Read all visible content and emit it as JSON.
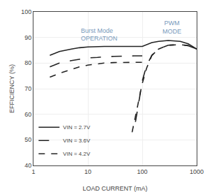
{
  "chart_data": {
    "type": "line",
    "xlabel": "LOAD CURRENT (mA)",
    "ylabel": "EFFICIENCY (%)",
    "log": "x",
    "xlim": [
      1,
      1000
    ],
    "ylim": [
      40,
      100
    ],
    "xticks": [
      1,
      10,
      100,
      1000
    ],
    "yticks": [
      40,
      50,
      60,
      70,
      80,
      90,
      100
    ],
    "grid": true,
    "legend": "lower left",
    "series": [
      {
        "name": "VIN = 2.7V",
        "color": "#222222",
        "line_style": "solid",
        "x": [
          2,
          3,
          5,
          7,
          10,
          15,
          20,
          30,
          50,
          70,
          100,
          150,
          200,
          300,
          500,
          700,
          1000
        ],
        "values": [
          83.0,
          84.5,
          85.5,
          86.0,
          86.3,
          86.5,
          86.5,
          86.5,
          86.5,
          86.5,
          86.5,
          88.0,
          88.5,
          88.8,
          88.5,
          87.5,
          85.5
        ]
      },
      {
        "name": "VIN = 3.6V",
        "color": "#222222",
        "line_style": "longdash",
        "x": [
          2,
          3,
          5,
          7,
          10,
          15,
          20,
          30,
          50,
          70,
          100,
          null,
          75,
          80,
          90,
          100,
          120,
          150,
          200,
          300,
          500,
          700,
          1000
        ],
        "values": [
          78.5,
          80.0,
          81.0,
          81.5,
          82.0,
          82.2,
          82.5,
          82.6,
          82.8,
          82.8,
          82.8,
          null,
          57.0,
          61.0,
          67.0,
          73.0,
          79.0,
          83.0,
          85.5,
          87.0,
          87.2,
          86.8,
          85.5
        ]
      },
      {
        "name": "VIN = 4.2V",
        "color": "#222222",
        "line_style": "shortdash",
        "x": [
          2,
          3,
          5,
          7,
          10,
          15,
          20,
          30,
          50,
          70,
          100,
          null,
          65,
          70,
          80,
          90,
          100,
          120,
          150,
          200,
          300,
          500,
          700,
          1000
        ],
        "values": [
          74.5,
          76.0,
          77.5,
          78.5,
          79.2,
          79.7,
          80.0,
          80.2,
          80.3,
          80.3,
          80.3,
          null,
          53.0,
          56.0,
          62.0,
          67.5,
          72.0,
          78.0,
          83.0,
          85.5,
          87.0,
          87.2,
          86.8,
          85.5
        ]
      }
    ],
    "annotations": [
      {
        "text": "Burst Mode",
        "color": "#7799bb"
      },
      {
        "text": "OPERATION",
        "color": "#7799bb"
      },
      {
        "text": "PWM\nMODE",
        "color": "#7799bb"
      }
    ]
  }
}
